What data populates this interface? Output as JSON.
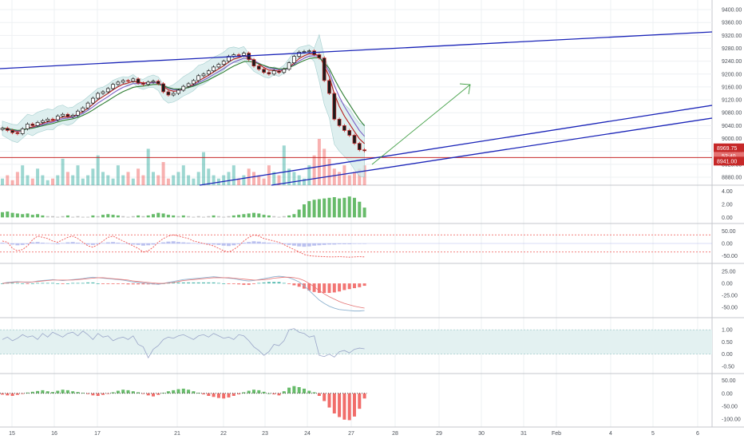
{
  "colors": {
    "up": "#26a69a",
    "down": "#ef5350",
    "trendline": "#1a24b8",
    "hline": "#c62828",
    "arrow": "#43a047",
    "bb_fill": "#d6ecec",
    "ema_fast": "#b71c1c",
    "ema_mid": "#7b5cc4",
    "ema_slow": "#2e7d32",
    "grid": "#eef0f3",
    "separator": "#c4c7cc",
    "rsi_band": "#e3f1f1",
    "stoch_line": "#9aa5c8",
    "macd_line": "#8fb3d0",
    "signal_line": "#e57373",
    "hist_up": "#26a69a",
    "hist_down": "#ef5350",
    "green_bar": "#4caf50",
    "grey_bar": "#9e9e9e"
  },
  "chart_data": {
    "type": "line",
    "x_labels": [
      "15",
      "16",
      "17",
      "21",
      "22",
      "23",
      "24",
      "27",
      "28",
      "29",
      "30",
      "31",
      "Feb",
      "4",
      "5",
      "6"
    ],
    "price": {
      "yticks": [
        "9400.00",
        "9360.00",
        "9320.00",
        "9280.00",
        "9240.00",
        "9200.00",
        "9160.00",
        "9120.00",
        "9080.00",
        "9040.00",
        "9000.00",
        "8960.00",
        "8920.00",
        "8880.00"
      ],
      "ylim": [
        8870,
        9415
      ],
      "closes": [
        9032,
        9025,
        9018,
        9015,
        9030,
        9045,
        9040,
        9050,
        9055,
        9060,
        9058,
        9070,
        9075,
        9068,
        9072,
        9085,
        9095,
        9110,
        9125,
        9140,
        9145,
        9155,
        9168,
        9175,
        9180,
        9178,
        9185,
        9172,
        9168,
        9175,
        9178,
        9170,
        9145,
        9135,
        9140,
        9150,
        9162,
        9170,
        9180,
        9195,
        9200,
        9210,
        9222,
        9230,
        9240,
        9255,
        9260,
        9258,
        9265,
        9245,
        9225,
        9215,
        9205,
        9200,
        9210,
        9205,
        9215,
        9235,
        9255,
        9268,
        9270,
        9272,
        9260,
        9250,
        9180,
        9140,
        9060,
        9040,
        9025,
        9010,
        8985,
        8965,
        8962
      ],
      "last_price": "8969.75",
      "countdown": "52:40",
      "hline_price": "8941.00",
      "hline_value": 8941
    },
    "volume": [
      2,
      3,
      1.5,
      4,
      6,
      3,
      2,
      5,
      3,
      1.5,
      2,
      3,
      8,
      4,
      3,
      6,
      2,
      3,
      5,
      9,
      4,
      3,
      2,
      6,
      3,
      4,
      2,
      5,
      3,
      11,
      4,
      3,
      7,
      2,
      3,
      4,
      6,
      3,
      2,
      4,
      10,
      5,
      3,
      2,
      3,
      4,
      6,
      2,
      3,
      5,
      4,
      3,
      2,
      6,
      4,
      3,
      12,
      5,
      4,
      3,
      2,
      6,
      9,
      14,
      11,
      8,
      5,
      4,
      6,
      3,
      4,
      5,
      6
    ],
    "green_hist": {
      "yticks": [
        "4.00",
        "2.00",
        "0.00"
      ],
      "ylim": [
        -0.2,
        4.2
      ],
      "values": [
        0.8,
        0.9,
        0.7,
        0.6,
        0.5,
        0.6,
        0.4,
        0.5,
        0.3,
        0.2,
        0.2,
        0.1,
        0.2,
        0.3,
        0.1,
        0.2,
        0.1,
        0.1,
        0.3,
        0.2,
        0.4,
        0.5,
        0.4,
        0.3,
        0.2,
        0.1,
        0.2,
        0.3,
        0.2,
        0.3,
        0.5,
        0.7,
        0.6,
        0.4,
        0.3,
        0.2,
        0.3,
        0.2,
        0.1,
        0.2,
        0.1,
        0.2,
        0.3,
        0.2,
        0.1,
        0.2,
        0.3,
        0.4,
        0.5,
        0.6,
        0.7,
        0.6,
        0.4,
        0.3,
        0.2,
        0.1,
        0.2,
        0.3,
        0.5,
        1.2,
        2.0,
        2.5,
        2.7,
        2.8,
        2.9,
        3.0,
        3.1,
        2.9,
        3.0,
        3.2,
        3.0,
        2.4,
        1.5
      ]
    },
    "stoch": {
      "yticks": [
        "50.00",
        "0.00",
        "-50.00"
      ],
      "ylim": [
        -62,
        62
      ],
      "upper_level": 35,
      "lower_level": -35,
      "values": [
        10,
        5,
        -20,
        -30,
        -25,
        -10,
        15,
        30,
        25,
        20,
        10,
        5,
        15,
        25,
        30,
        20,
        5,
        -10,
        -15,
        -5,
        10,
        25,
        30,
        20,
        10,
        0,
        -10,
        -20,
        -35,
        -30,
        -15,
        5,
        20,
        30,
        35,
        30,
        25,
        20,
        10,
        5,
        0,
        -5,
        -10,
        -20,
        -30,
        -35,
        -25,
        -10,
        10,
        25,
        35,
        30,
        20,
        15,
        10,
        5,
        -5,
        -15,
        -25,
        -35,
        -45,
        -50,
        -52,
        -53,
        -54,
        -55,
        -55,
        -54,
        -55,
        -56,
        -55,
        -54,
        -55
      ],
      "hist": [
        2,
        1,
        -3,
        -5,
        -4,
        -2,
        3,
        4,
        2,
        1,
        -1,
        -2,
        1,
        3,
        4,
        2,
        -1,
        -3,
        -4,
        -2,
        1,
        3,
        4,
        2,
        0,
        -1,
        -3,
        -4,
        -6,
        -5,
        -3,
        1,
        3,
        5,
        6,
        4,
        3,
        2,
        1,
        0,
        -1,
        -2,
        -3,
        -4,
        -6,
        -7,
        -5,
        -2,
        2,
        4,
        6,
        5,
        3,
        2,
        1,
        0,
        -2,
        -4,
        -6,
        -8,
        -9,
        -8,
        -6,
        -5,
        -4,
        -3,
        -3,
        -2,
        -2,
        -2,
        -1,
        -1,
        -1
      ]
    },
    "macd": {
      "yticks": [
        "25.00",
        "0.00",
        "-25.00",
        "-50.00"
      ],
      "ylim": [
        -62,
        32
      ],
      "macd": [
        0,
        2,
        3,
        4,
        3,
        2,
        3,
        5,
        6,
        7,
        8,
        7,
        6,
        7,
        8,
        9,
        10,
        12,
        13,
        12,
        11,
        10,
        9,
        8,
        7,
        5,
        3,
        2,
        1,
        0,
        -1,
        -2,
        0,
        2,
        4,
        6,
        8,
        9,
        10,
        11,
        12,
        13,
        14,
        13,
        12,
        11,
        10,
        8,
        6,
        5,
        6,
        8,
        10,
        12,
        14,
        15,
        14,
        12,
        8,
        3,
        -5,
        -15,
        -25,
        -35,
        -42,
        -48,
        -52,
        -55,
        -56,
        -57,
        -58,
        -58,
        -57
      ],
      "signal": [
        0,
        1,
        2,
        3,
        3,
        3,
        3,
        4,
        5,
        6,
        7,
        7,
        7,
        7,
        7,
        8,
        9,
        10,
        11,
        12,
        12,
        11,
        10,
        9,
        8,
        7,
        5,
        4,
        3,
        2,
        1,
        0,
        0,
        1,
        2,
        4,
        6,
        7,
        8,
        9,
        10,
        11,
        12,
        12,
        12,
        12,
        11,
        10,
        9,
        8,
        7,
        7,
        8,
        9,
        11,
        12,
        13,
        13,
        12,
        10,
        6,
        0,
        -7,
        -15,
        -22,
        -28,
        -33,
        -38,
        -42,
        -45,
        -48,
        -50,
        -52
      ],
      "hist": [
        0,
        1,
        1,
        1,
        0,
        -1,
        0,
        1,
        1,
        1,
        1,
        0,
        -1,
        0,
        1,
        1,
        1,
        2,
        2,
        0,
        -1,
        -1,
        -1,
        -1,
        -1,
        -2,
        -2,
        -2,
        -2,
        -2,
        -2,
        -2,
        0,
        1,
        2,
        2,
        2,
        2,
        2,
        2,
        2,
        2,
        2,
        1,
        0,
        -1,
        -1,
        -2,
        -3,
        -3,
        -1,
        1,
        2,
        3,
        3,
        3,
        1,
        -1,
        -4,
        -7,
        -11,
        -15,
        -18,
        -20,
        -20,
        -20,
        -19,
        -17,
        -14,
        -12,
        -10,
        -8,
        -5
      ]
    },
    "rsi": {
      "yticks": [
        "1.00",
        "0.50",
        "0.00",
        "-0.50"
      ],
      "ylim": [
        -0.6,
        1.3
      ],
      "band": [
        0.0,
        1.0
      ],
      "values": [
        0.6,
        0.7,
        0.55,
        0.65,
        0.8,
        0.7,
        0.75,
        0.6,
        0.85,
        0.7,
        0.9,
        0.8,
        0.7,
        0.85,
        0.9,
        0.75,
        0.95,
        0.8,
        0.6,
        0.85,
        0.7,
        0.75,
        0.55,
        0.65,
        0.7,
        0.6,
        0.75,
        0.4,
        0.3,
        -0.15,
        0.2,
        0.35,
        0.6,
        0.7,
        0.65,
        0.75,
        0.8,
        0.7,
        0.6,
        0.75,
        0.8,
        0.7,
        0.85,
        0.75,
        0.65,
        0.7,
        0.6,
        0.8,
        0.75,
        0.55,
        0.3,
        0.15,
        -0.05,
        0.1,
        0.4,
        0.35,
        0.55,
        1.0,
        1.05,
        0.9,
        0.85,
        0.7,
        0.75,
        -0.05,
        -0.1,
        0.0,
        -0.12,
        0.1,
        0.15,
        0.05,
        0.2,
        0.25,
        0.22
      ]
    },
    "osc": {
      "yticks": [
        "50.00",
        "0.00",
        "-50.00",
        "-100.00"
      ],
      "ylim": [
        -112,
        58
      ],
      "values": [
        -5,
        -8,
        -10,
        -6,
        -2,
        3,
        6,
        9,
        12,
        8,
        5,
        10,
        14,
        12,
        8,
        5,
        2,
        -3,
        -8,
        -10,
        -6,
        -2,
        4,
        10,
        14,
        12,
        8,
        4,
        -2,
        -8,
        -12,
        -6,
        2,
        8,
        12,
        16,
        18,
        14,
        8,
        2,
        -4,
        -10,
        -14,
        -18,
        -20,
        -16,
        -10,
        -4,
        4,
        10,
        14,
        12,
        6,
        0,
        -4,
        -8,
        8,
        22,
        28,
        24,
        18,
        10,
        4,
        -10,
        -30,
        -55,
        -78,
        -92,
        -102,
        -104,
        -90,
        -60,
        -20
      ]
    }
  }
}
